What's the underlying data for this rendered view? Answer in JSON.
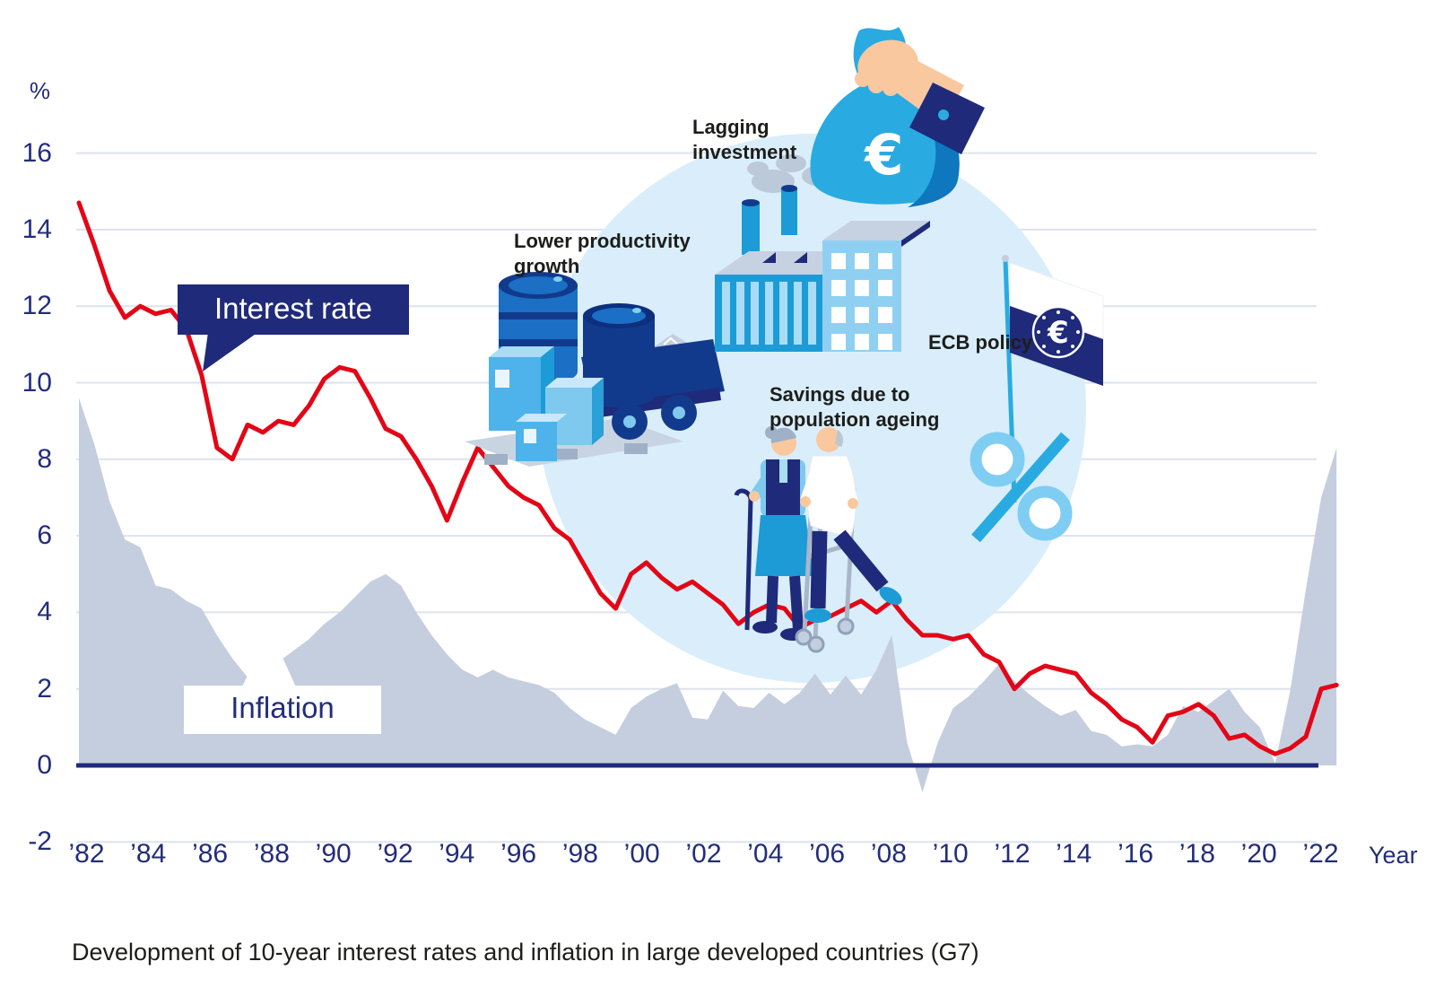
{
  "colors": {
    "red_line": "#e30617",
    "inflation_area": "#c5cedf",
    "navy": "#1f2a7a",
    "grid": "#dde3ed",
    "circle_bg": "#d9eefa",
    "axis_text": "#232d7b",
    "text_dark": "#1d1d1b"
  },
  "axis": {
    "percent_label": "%",
    "year_label": "Year",
    "y_ticks": [
      "16",
      "14",
      "12",
      "10",
      "8",
      "6",
      "4",
      "2",
      "0",
      "-2"
    ],
    "y_tick_values": [
      16,
      14,
      12,
      10,
      8,
      6,
      4,
      2,
      0,
      -2
    ],
    "x_ticks": [
      "’82",
      "’84",
      "’86",
      "’88",
      "’90",
      "’92",
      "’94",
      "’96",
      "’98",
      "’00",
      "’02",
      "’04",
      "’06",
      "’08",
      "’10",
      "’12",
      "’14",
      "’16",
      "’18",
      "’20",
      "’22"
    ]
  },
  "callouts": {
    "interest_rate": "Interest rate",
    "inflation": "Inflation"
  },
  "annotations": {
    "lagging_investment": "Lagging\ninvestment",
    "lower_productivity": "Lower productivity\ngrowth",
    "ecb_policy": "ECB policy",
    "savings_ageing": "Savings due to\npopulation ageing"
  },
  "icons": {
    "euro_symbol": "€"
  },
  "caption": "Development of 10-year interest rates and inflation in large developed countries (G7)",
  "chart_data": {
    "type": "area",
    "title": "",
    "xlabel": "Year",
    "ylabel": "%",
    "x_start": 1982,
    "x_step": 0.5,
    "x_range": [
      1982,
      2023
    ],
    "ylim": [
      -2,
      16
    ],
    "grid": true,
    "series": [
      {
        "name": "Interest rate",
        "type": "line",
        "color": "#e30617",
        "values": [
          14.7,
          13.6,
          12.4,
          11.7,
          12.0,
          11.8,
          11.9,
          11.4,
          10.2,
          8.3,
          8.0,
          8.9,
          8.7,
          9.0,
          8.9,
          9.4,
          10.1,
          10.4,
          10.3,
          9.6,
          8.8,
          8.6,
          8.0,
          7.3,
          6.4,
          7.4,
          8.3,
          7.8,
          7.3,
          7.0,
          6.8,
          6.2,
          5.9,
          5.2,
          4.5,
          4.1,
          5.0,
          5.3,
          4.9,
          4.6,
          4.8,
          4.5,
          4.2,
          3.7,
          4.0,
          4.2,
          4.1,
          3.6,
          3.8,
          3.9,
          4.1,
          4.3,
          4.0,
          4.3,
          3.8,
          3.4,
          3.4,
          3.3,
          3.4,
          2.9,
          2.7,
          2.0,
          2.4,
          2.6,
          2.5,
          2.4,
          1.9,
          1.6,
          1.2,
          1.0,
          0.6,
          1.3,
          1.4,
          1.6,
          1.3,
          0.7,
          0.8,
          0.5,
          0.3,
          0.45,
          0.75,
          2.0,
          2.1
        ]
      },
      {
        "name": "Inflation",
        "type": "area",
        "color": "#c5cedf",
        "values": [
          9.6,
          8.4,
          6.9,
          5.9,
          5.7,
          4.7,
          4.6,
          4.3,
          4.1,
          3.4,
          2.8,
          2.3,
          2.8,
          2.7,
          3.0,
          3.3,
          3.7,
          4.0,
          4.4,
          4.8,
          5.0,
          4.7,
          4.0,
          3.4,
          2.9,
          2.5,
          2.3,
          2.5,
          2.3,
          2.2,
          2.1,
          1.9,
          1.5,
          1.2,
          1.0,
          0.8,
          1.5,
          1.8,
          2.0,
          2.15,
          1.25,
          1.2,
          1.95,
          1.55,
          1.5,
          1.9,
          1.6,
          1.9,
          2.4,
          1.85,
          2.35,
          1.85,
          2.5,
          3.4,
          0.6,
          -0.7,
          0.6,
          1.5,
          1.8,
          2.2,
          2.65,
          2.2,
          1.85,
          1.55,
          1.3,
          1.45,
          0.9,
          0.8,
          0.5,
          0.55,
          0.5,
          0.8,
          1.55,
          1.4,
          1.7,
          2.0,
          1.4,
          1.0,
          0.05,
          2.0,
          4.6,
          7.0,
          8.3
        ]
      }
    ]
  }
}
